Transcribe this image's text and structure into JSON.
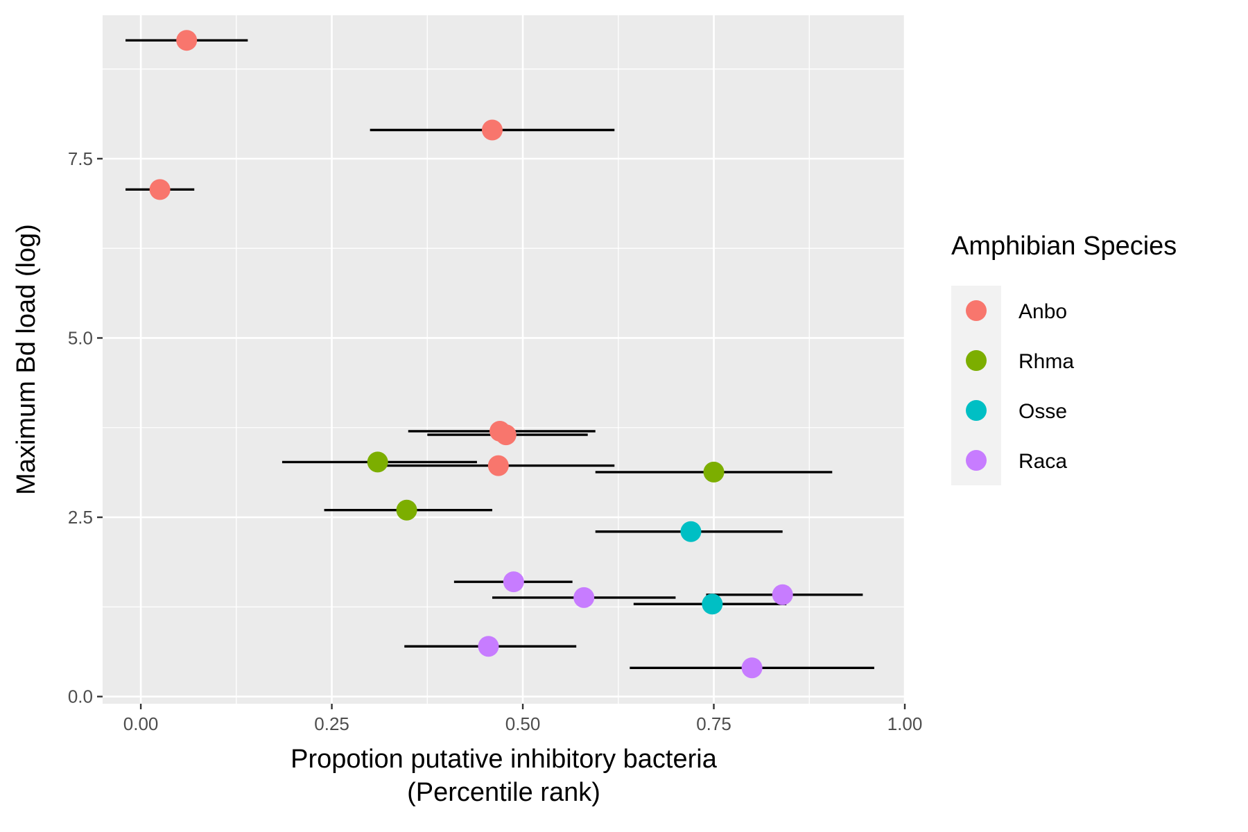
{
  "chart_data": {
    "type": "scatter",
    "title": "",
    "xlabel_line1": "Propotion putative inhibitory bacteria",
    "xlabel_line2": "(Percentile rank)",
    "ylabel": "Maximum Bd load (log)",
    "xlim": [
      -0.05,
      1.0
    ],
    "ylim": [
      -0.1,
      9.5
    ],
    "x_ticks": [
      0.0,
      0.25,
      0.5,
      0.75,
      1.0
    ],
    "x_tick_labels": [
      "0.00",
      "0.25",
      "0.50",
      "0.75",
      "1.00"
    ],
    "y_ticks": [
      0.0,
      2.5,
      5.0,
      7.5
    ],
    "y_tick_labels": [
      "0.0",
      "2.5",
      "5.0",
      "7.5"
    ],
    "grid": true,
    "error_bars": "horizontal",
    "legend": {
      "title": "Amphibian Species",
      "position": "right",
      "entries": [
        {
          "name": "Anbo",
          "color": "#F8766D"
        },
        {
          "name": "Rhma",
          "color": "#7CAE00"
        },
        {
          "name": "Osse",
          "color": "#00BFC4"
        },
        {
          "name": "Raca",
          "color": "#C77CFF"
        }
      ]
    },
    "series": [
      {
        "name": "Anbo",
        "color": "#F8766D",
        "points": [
          {
            "x": 0.06,
            "y": 9.15,
            "xmin": -0.02,
            "xmax": 0.14
          },
          {
            "x": 0.46,
            "y": 7.9,
            "xmin": 0.3,
            "xmax": 0.62
          },
          {
            "x": 0.025,
            "y": 7.07,
            "xmin": -0.02,
            "xmax": 0.07
          },
          {
            "x": 0.47,
            "y": 3.7,
            "xmin": 0.35,
            "xmax": 0.595
          },
          {
            "x": 0.478,
            "y": 3.65,
            "xmin": 0.375,
            "xmax": 0.585
          },
          {
            "x": 0.468,
            "y": 3.22,
            "xmin": 0.3,
            "xmax": 0.62
          }
        ]
      },
      {
        "name": "Rhma",
        "color": "#7CAE00",
        "points": [
          {
            "x": 0.31,
            "y": 3.27,
            "xmin": 0.185,
            "xmax": 0.44
          },
          {
            "x": 0.75,
            "y": 3.13,
            "xmin": 0.595,
            "xmax": 0.905
          },
          {
            "x": 0.348,
            "y": 2.6,
            "xmin": 0.24,
            "xmax": 0.46
          }
        ]
      },
      {
        "name": "Osse",
        "color": "#00BFC4",
        "points": [
          {
            "x": 0.72,
            "y": 2.3,
            "xmin": 0.595,
            "xmax": 0.84
          },
          {
            "x": 0.748,
            "y": 1.29,
            "xmin": 0.645,
            "xmax": 0.845
          }
        ]
      },
      {
        "name": "Raca",
        "color": "#C77CFF",
        "points": [
          {
            "x": 0.488,
            "y": 1.6,
            "xmin": 0.41,
            "xmax": 0.565
          },
          {
            "x": 0.58,
            "y": 1.38,
            "xmin": 0.46,
            "xmax": 0.7
          },
          {
            "x": 0.84,
            "y": 1.42,
            "xmin": 0.74,
            "xmax": 0.945
          },
          {
            "x": 0.455,
            "y": 0.7,
            "xmin": 0.345,
            "xmax": 0.57
          },
          {
            "x": 0.8,
            "y": 0.4,
            "xmin": 0.64,
            "xmax": 0.96
          }
        ]
      }
    ]
  }
}
